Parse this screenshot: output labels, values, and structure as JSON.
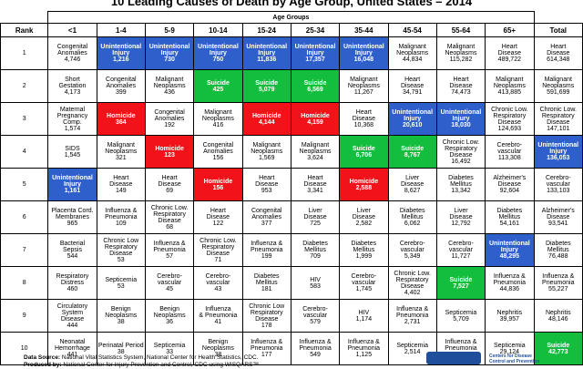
{
  "title": "10 Leading Causes of Death by Age Group, United States – 2014",
  "header": {
    "age_groups_label": "Age Groups",
    "rank_label": "Rank",
    "total_label": "Total"
  },
  "footer": {
    "source_prefix": "Data Source:",
    "source_text": "National Vital Statistics System, National Center for Health Statistics, CDC.",
    "produced_prefix": "Produced by:",
    "produced_text": "National Center for Injury Prevention and Control, CDC using WISQARS™"
  },
  "logo_text": "Centers for Disease\nControl and Prevention",
  "colors": {
    "blue": "#2e5fcb",
    "green": "#13bd3e",
    "red": "#f2131a"
  },
  "chart_data": {
    "type": "table",
    "title": "10 Leading Causes of Death by Age Group, United States – 2014",
    "columns": [
      "<1",
      "1-4",
      "5-9",
      "10-14",
      "15-24",
      "25-34",
      "35-44",
      "45-54",
      "55-64",
      "65+",
      "Total"
    ],
    "ranks": [
      "1",
      "2",
      "3",
      "4",
      "5",
      "6",
      "7",
      "8",
      "9",
      "10"
    ],
    "rows": [
      [
        {
          "cause": "Congenital\nAnomalies",
          "deaths": "4,746",
          "color": "white"
        },
        {
          "cause": "Unintentional\nInjury",
          "deaths": "1,216",
          "color": "blue"
        },
        {
          "cause": "Unintentional\nInjury",
          "deaths": "730",
          "color": "blue"
        },
        {
          "cause": "Unintentional\nInjury",
          "deaths": "750",
          "color": "blue"
        },
        {
          "cause": "Unintentional\nInjury",
          "deaths": "11,836",
          "color": "blue"
        },
        {
          "cause": "Unintentional\nInjury",
          "deaths": "17,357",
          "color": "blue"
        },
        {
          "cause": "Unintentional\nInjury",
          "deaths": "16,048",
          "color": "blue"
        },
        {
          "cause": "Malignant\nNeoplasms",
          "deaths": "44,834",
          "color": "white"
        },
        {
          "cause": "Malignant\nNeoplasms",
          "deaths": "115,282",
          "color": "white"
        },
        {
          "cause": "Heart\nDisease",
          "deaths": "489,722",
          "color": "white"
        },
        {
          "cause": "Heart\nDisease",
          "deaths": "614,348",
          "color": "white"
        }
      ],
      [
        {
          "cause": "Short\nGestation",
          "deaths": "4,173",
          "color": "white"
        },
        {
          "cause": "Congenital\nAnomalies",
          "deaths": "399",
          "color": "white"
        },
        {
          "cause": "Malignant\nNeoplasms",
          "deaths": "436",
          "color": "white"
        },
        {
          "cause": "Suicide",
          "deaths": "425",
          "color": "green"
        },
        {
          "cause": "Suicide",
          "deaths": "5,079",
          "color": "green"
        },
        {
          "cause": "Suicide",
          "deaths": "6,569",
          "color": "green"
        },
        {
          "cause": "Malignant\nNeoplasms",
          "deaths": "11,267",
          "color": "white"
        },
        {
          "cause": "Heart\nDisease",
          "deaths": "34,791",
          "color": "white"
        },
        {
          "cause": "Heart\nDisease",
          "deaths": "74,473",
          "color": "white"
        },
        {
          "cause": "Malignant\nNeoplasms",
          "deaths": "413,885",
          "color": "white"
        },
        {
          "cause": "Malignant\nNeoplasms",
          "deaths": "591,699",
          "color": "white"
        }
      ],
      [
        {
          "cause": "Maternal\nPregnancy\nComp.",
          "deaths": "1,574",
          "color": "white"
        },
        {
          "cause": "Homicide",
          "deaths": "364",
          "color": "red"
        },
        {
          "cause": "Congenital\nAnomalies",
          "deaths": "192",
          "color": "white"
        },
        {
          "cause": "Malignant\nNeoplasms",
          "deaths": "416",
          "color": "white"
        },
        {
          "cause": "Homicide",
          "deaths": "4,144",
          "color": "red"
        },
        {
          "cause": "Homicide",
          "deaths": "4,159",
          "color": "red"
        },
        {
          "cause": "Heart\nDisease",
          "deaths": "10,368",
          "color": "white"
        },
        {
          "cause": "Unintentional\nInjury",
          "deaths": "20,610",
          "color": "blue"
        },
        {
          "cause": "Unintentional\nInjury",
          "deaths": "18,030",
          "color": "blue"
        },
        {
          "cause": "Chronic Low.\nRespiratory\nDisease",
          "deaths": "124,693",
          "color": "white"
        },
        {
          "cause": "Chronic Low.\nRespiratory\nDisease",
          "deaths": "147,101",
          "color": "white"
        }
      ],
      [
        {
          "cause": "SIDS",
          "deaths": "1,545",
          "color": "white"
        },
        {
          "cause": "Malignant\nNeoplasms",
          "deaths": "321",
          "color": "white"
        },
        {
          "cause": "Homicide",
          "deaths": "123",
          "color": "red"
        },
        {
          "cause": "Congenital\nAnomalies",
          "deaths": "156",
          "color": "white"
        },
        {
          "cause": "Malignant\nNeoplasms",
          "deaths": "1,569",
          "color": "white"
        },
        {
          "cause": "Malignant\nNeoplasms",
          "deaths": "3,624",
          "color": "white"
        },
        {
          "cause": "Suicide",
          "deaths": "6,706",
          "color": "green"
        },
        {
          "cause": "Suicide",
          "deaths": "8,767",
          "color": "green"
        },
        {
          "cause": "Chronic Low.\nRespiratory\nDisease",
          "deaths": "16,492",
          "color": "white"
        },
        {
          "cause": "Cerebro-\nvascular",
          "deaths": "113,308",
          "color": "white"
        },
        {
          "cause": "Unintentional\nInjury",
          "deaths": "136,053",
          "color": "blue"
        }
      ],
      [
        {
          "cause": "Unintentional\nInjury",
          "deaths": "1,161",
          "color": "blue"
        },
        {
          "cause": "Heart\nDisease",
          "deaths": "149",
          "color": "white"
        },
        {
          "cause": "Heart\nDisease",
          "deaths": "69",
          "color": "white"
        },
        {
          "cause": "Homicide",
          "deaths": "156",
          "color": "red"
        },
        {
          "cause": "Heart\nDisease",
          "deaths": "953",
          "color": "white"
        },
        {
          "cause": "Heart\nDisease",
          "deaths": "3,341",
          "color": "white"
        },
        {
          "cause": "Homicide",
          "deaths": "2,588",
          "color": "red"
        },
        {
          "cause": "Liver\nDisease",
          "deaths": "8,627",
          "color": "white"
        },
        {
          "cause": "Diabetes\nMellitus",
          "deaths": "13,342",
          "color": "white"
        },
        {
          "cause": "Alzheimer's\nDisease",
          "deaths": "92,604",
          "color": "white"
        },
        {
          "cause": "Cerebro-\nvascular",
          "deaths": "133,103",
          "color": "white"
        }
      ],
      [
        {
          "cause": "Placenta Cord.\nMembranes",
          "deaths": "965",
          "color": "white"
        },
        {
          "cause": "Influenza &\nPneumonia",
          "deaths": "109",
          "color": "white"
        },
        {
          "cause": "Chronic Low.\nRespiratory\nDisease",
          "deaths": "68",
          "color": "white"
        },
        {
          "cause": "Heart\nDisease",
          "deaths": "122",
          "color": "white"
        },
        {
          "cause": "Congenital\nAnomalies",
          "deaths": "377",
          "color": "white"
        },
        {
          "cause": "Liver\nDisease",
          "deaths": "725",
          "color": "white"
        },
        {
          "cause": "Liver\nDisease",
          "deaths": "2,582",
          "color": "white"
        },
        {
          "cause": "Diabetes\nMellitus",
          "deaths": "6,062",
          "color": "white"
        },
        {
          "cause": "Liver\nDisease",
          "deaths": "12,792",
          "color": "white"
        },
        {
          "cause": "Diabetes\nMellitus",
          "deaths": "54,161",
          "color": "white"
        },
        {
          "cause": "Alzheimer's\nDisease",
          "deaths": "93,541",
          "color": "white"
        }
      ],
      [
        {
          "cause": "Bacterial\nSepsis",
          "deaths": "544",
          "color": "white"
        },
        {
          "cause": "Chronic Low\nRespiratory\nDisease",
          "deaths": "53",
          "color": "white"
        },
        {
          "cause": "Influenza &\nPneumonia",
          "deaths": "57",
          "color": "white"
        },
        {
          "cause": "Chronic Low.\nRespiratory\nDisease",
          "deaths": "71",
          "color": "white"
        },
        {
          "cause": "Influenza &\nPneumonia",
          "deaths": "199",
          "color": "white"
        },
        {
          "cause": "Diabetes\nMellitus",
          "deaths": "709",
          "color": "white"
        },
        {
          "cause": "Diabetes\nMellitus",
          "deaths": "1,999",
          "color": "white"
        },
        {
          "cause": "Cerebro-\nvascular",
          "deaths": "5,349",
          "color": "white"
        },
        {
          "cause": "Cerebro-\nvascular",
          "deaths": "11,727",
          "color": "white"
        },
        {
          "cause": "Unintentional\nInjury",
          "deaths": "48,295",
          "color": "blue"
        },
        {
          "cause": "Diabetes\nMellitus",
          "deaths": "76,488",
          "color": "white"
        }
      ],
      [
        {
          "cause": "Respiratory\nDistress",
          "deaths": "460",
          "color": "white"
        },
        {
          "cause": "Septicemia",
          "deaths": "53",
          "color": "white"
        },
        {
          "cause": "Cerebro-\nvascular",
          "deaths": "45",
          "color": "white"
        },
        {
          "cause": "Cerebro-\nvascular",
          "deaths": "43",
          "color": "white"
        },
        {
          "cause": "Diabetes\nMellitus",
          "deaths": "181",
          "color": "white"
        },
        {
          "cause": "HIV",
          "deaths": "583",
          "color": "white"
        },
        {
          "cause": "Cerebro-\nvascular",
          "deaths": "1,745",
          "color": "white"
        },
        {
          "cause": "Chronic Low.\nRespiratory\nDisease",
          "deaths": "4,402",
          "color": "white"
        },
        {
          "cause": "Suicide",
          "deaths": "7,527",
          "color": "green"
        },
        {
          "cause": "Influenza &\nPneumonia",
          "deaths": "44,836",
          "color": "white"
        },
        {
          "cause": "Influenza &\nPneumonia",
          "deaths": "55,227",
          "color": "white"
        }
      ],
      [
        {
          "cause": "Circulatory\nSystem\nDisease",
          "deaths": "444",
          "color": "white"
        },
        {
          "cause": "Benign\nNeoplasms",
          "deaths": "38",
          "color": "white"
        },
        {
          "cause": "Benign\nNeoplasms",
          "deaths": "36",
          "color": "white"
        },
        {
          "cause": "Influenza\n& Pneumonia",
          "deaths": "41",
          "color": "white"
        },
        {
          "cause": "Chronic Low\nRespiratory\nDisease",
          "deaths": "178",
          "color": "white"
        },
        {
          "cause": "Cerebro-\nvascular",
          "deaths": "579",
          "color": "white"
        },
        {
          "cause": "HIV",
          "deaths": "1,174",
          "color": "white"
        },
        {
          "cause": "Influenza &\nPneumonia",
          "deaths": "2,731",
          "color": "white"
        },
        {
          "cause": "Septicemia",
          "deaths": "5,709",
          "color": "white"
        },
        {
          "cause": "Nephritis",
          "deaths": "39,957",
          "color": "white"
        },
        {
          "cause": "Nephritis",
          "deaths": "48,146",
          "color": "white"
        }
      ],
      [
        {
          "cause": "Neonatal\nHemorrhage",
          "deaths": "441",
          "color": "white"
        },
        {
          "cause": "Perinatal Period",
          "deaths": "38",
          "color": "white"
        },
        {
          "cause": "Septicemia",
          "deaths": "33",
          "color": "white"
        },
        {
          "cause": "Benign\nNeoplasms",
          "deaths": "38",
          "color": "white"
        },
        {
          "cause": "Influenza &\nPneumonia",
          "deaths": "177",
          "color": "white"
        },
        {
          "cause": "Influenza &\nPneumonia",
          "deaths": "549",
          "color": "white"
        },
        {
          "cause": "Influenza &\nPneumonia",
          "deaths": "1,125",
          "color": "white"
        },
        {
          "cause": "Septicemia",
          "deaths": "2,514",
          "color": "white"
        },
        {
          "cause": "Influenza &\nPneumonia",
          "deaths": "5,390",
          "color": "white"
        },
        {
          "cause": "Septicemia",
          "deaths": "29,124",
          "color": "white"
        },
        {
          "cause": "Suicide",
          "deaths": "42,773",
          "color": "green"
        }
      ]
    ]
  }
}
